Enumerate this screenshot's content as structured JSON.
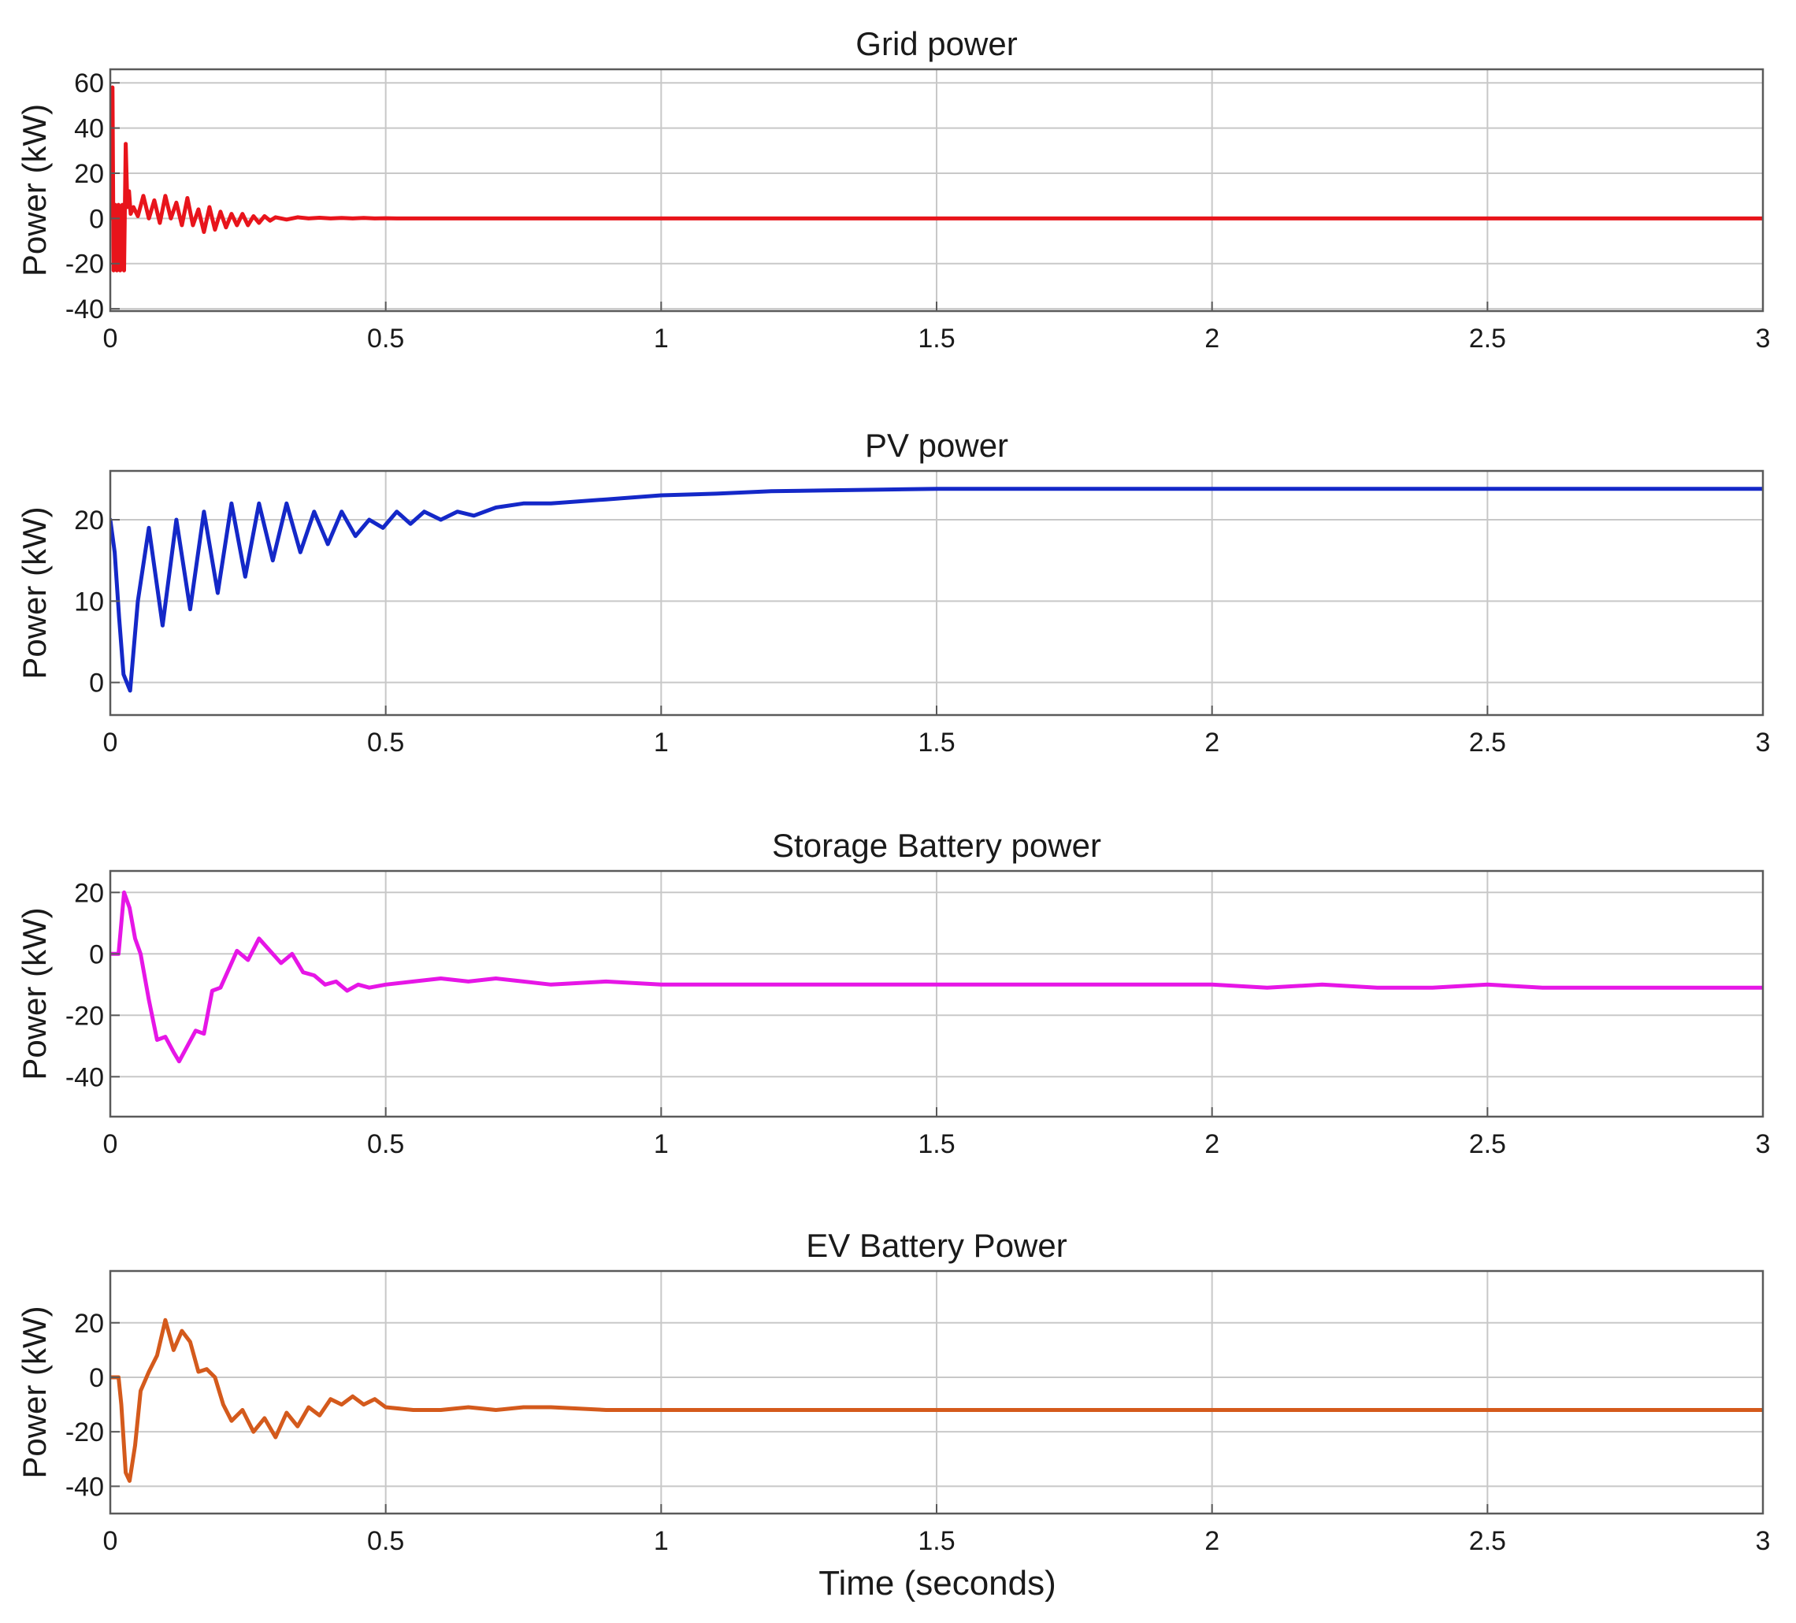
{
  "figure": {
    "xlabel": "Time (seconds)"
  },
  "chart_data": [
    {
      "type": "line",
      "title": "Grid power",
      "ylabel": "Power (kW)",
      "xlabel": "",
      "xlim": [
        0,
        3
      ],
      "ylim": [
        -41,
        66
      ],
      "xticks": [
        0,
        0.5,
        1,
        1.5,
        2,
        2.5,
        3
      ],
      "xtick_labels": [
        "0",
        "0.5",
        "1",
        "1.5",
        "2",
        "2.5",
        "3"
      ],
      "yticks": [
        -40,
        -20,
        0,
        20,
        40,
        60
      ],
      "ytick_labels": [
        "-40",
        "-20",
        "0",
        "20",
        "40",
        "60"
      ],
      "grid": true,
      "series": [
        {
          "color": "#e8141b",
          "x": [
            0,
            0.004,
            0.006,
            0.009,
            0.012,
            0.015,
            0.018,
            0.022,
            0.025,
            0.028,
            0.031,
            0.034,
            0.037,
            0.042,
            0.05,
            0.06,
            0.07,
            0.08,
            0.09,
            0.1,
            0.11,
            0.12,
            0.13,
            0.14,
            0.15,
            0.16,
            0.17,
            0.18,
            0.19,
            0.2,
            0.21,
            0.22,
            0.23,
            0.24,
            0.25,
            0.26,
            0.27,
            0.28,
            0.29,
            0.3,
            0.32,
            0.34,
            0.36,
            0.38,
            0.4,
            0.42,
            0.44,
            0.46,
            0.48,
            0.5,
            0.52,
            0.54,
            0.56,
            0.58,
            0.6,
            0.63,
            0.66,
            0.7,
            0.75,
            0.8,
            0.9,
            1.0,
            1.2,
            1.4,
            1.6,
            1.8,
            2.0,
            2.2,
            2.4,
            2.6,
            2.8,
            3.0
          ],
          "y": [
            0,
            58,
            -23,
            6,
            -23,
            6,
            -23,
            6,
            -23,
            33,
            5,
            12,
            2,
            5,
            1,
            10,
            0,
            8,
            -2,
            10,
            0,
            7,
            -3,
            9,
            -3,
            4,
            -6,
            5,
            -5,
            3,
            -4,
            2,
            -3,
            2,
            -3,
            1,
            -2,
            1,
            -1,
            0.5,
            -0.5,
            0.5,
            0,
            0.3,
            0,
            0.2,
            0,
            0.2,
            0,
            0.1,
            0,
            0,
            0,
            0,
            0,
            0,
            0,
            0,
            0,
            0,
            0,
            0,
            0,
            0,
            0,
            0,
            0,
            0,
            0,
            0,
            0,
            0
          ]
        }
      ]
    },
    {
      "type": "line",
      "title": "PV power",
      "ylabel": "Power (kW)",
      "xlabel": "",
      "xlim": [
        0,
        3
      ],
      "ylim": [
        -4,
        26
      ],
      "xticks": [
        0,
        0.5,
        1,
        1.5,
        2,
        2.5,
        3
      ],
      "xtick_labels": [
        "0",
        "0.5",
        "1",
        "1.5",
        "2",
        "2.5",
        "3"
      ],
      "yticks": [
        0,
        10,
        20
      ],
      "ytick_labels": [
        "0",
        "10",
        "20"
      ],
      "grid": true,
      "series": [
        {
          "color": "#1428c8",
          "x": [
            0,
            0.008,
            0.016,
            0.024,
            0.036,
            0.05,
            0.07,
            0.095,
            0.12,
            0.145,
            0.17,
            0.195,
            0.22,
            0.245,
            0.27,
            0.295,
            0.32,
            0.345,
            0.37,
            0.395,
            0.42,
            0.445,
            0.47,
            0.495,
            0.52,
            0.545,
            0.57,
            0.6,
            0.63,
            0.66,
            0.7,
            0.75,
            0.8,
            0.9,
            1.0,
            1.1,
            1.2,
            1.3,
            1.4,
            1.5,
            1.7,
            2.0,
            2.3,
            2.6,
            2.9,
            3.0
          ],
          "y": [
            20,
            16,
            8,
            1,
            -1,
            10,
            19,
            7,
            20,
            9,
            21,
            11,
            22,
            13,
            22,
            15,
            22,
            16,
            21,
            17,
            21,
            18,
            20,
            19,
            21,
            19.5,
            21,
            20,
            21,
            20.5,
            21.5,
            22,
            22,
            22.5,
            23,
            23.2,
            23.5,
            23.6,
            23.7,
            23.8,
            23.8,
            23.8,
            23.8,
            23.8,
            23.8,
            23.8
          ]
        }
      ]
    },
    {
      "type": "line",
      "title": "Storage Battery power",
      "ylabel": "Power (kW)",
      "xlabel": "",
      "xlim": [
        0,
        3
      ],
      "ylim": [
        -53,
        27
      ],
      "xticks": [
        0,
        0.5,
        1,
        1.5,
        2,
        2.5,
        3
      ],
      "xtick_labels": [
        "0",
        "0.5",
        "1",
        "1.5",
        "2",
        "2.5",
        "3"
      ],
      "yticks": [
        -40,
        -20,
        0,
        20
      ],
      "ytick_labels": [
        "-40",
        "-20",
        "0",
        "20"
      ],
      "grid": true,
      "series": [
        {
          "color": "#e616e6",
          "x": [
            0,
            0.015,
            0.025,
            0.035,
            0.045,
            0.055,
            0.07,
            0.085,
            0.1,
            0.115,
            0.125,
            0.14,
            0.155,
            0.17,
            0.185,
            0.2,
            0.215,
            0.23,
            0.25,
            0.27,
            0.29,
            0.31,
            0.33,
            0.35,
            0.37,
            0.39,
            0.41,
            0.43,
            0.45,
            0.47,
            0.5,
            0.55,
            0.6,
            0.65,
            0.7,
            0.75,
            0.8,
            0.9,
            1.0,
            1.1,
            1.2,
            1.3,
            1.4,
            1.5,
            1.6,
            1.7,
            1.8,
            1.9,
            2.0,
            2.1,
            2.2,
            2.3,
            2.4,
            2.5,
            2.6,
            2.7,
            2.8,
            2.9,
            3.0
          ],
          "y": [
            0,
            0,
            20,
            15,
            5,
            0,
            -15,
            -28,
            -27,
            -32,
            -35,
            -30,
            -25,
            -26,
            -12,
            -11,
            -5,
            1,
            -2,
            5,
            1,
            -3,
            0,
            -6,
            -7,
            -10,
            -9,
            -12,
            -10,
            -11,
            -10,
            -9,
            -8,
            -9,
            -8,
            -9,
            -10,
            -9,
            -10,
            -10,
            -10,
            -10,
            -10,
            -10,
            -10,
            -10,
            -10,
            -10,
            -10,
            -11,
            -10,
            -11,
            -11,
            -10,
            -11,
            -11,
            -11,
            -11,
            -11
          ]
        }
      ]
    },
    {
      "type": "line",
      "title": "EV Battery Power",
      "ylabel": "Power (kW)",
      "xlabel": "Time (seconds)",
      "xlim": [
        0,
        3
      ],
      "ylim": [
        -50,
        39
      ],
      "xticks": [
        0,
        0.5,
        1,
        1.5,
        2,
        2.5,
        3
      ],
      "xtick_labels": [
        "0",
        "0.5",
        "1",
        "1.5",
        "2",
        "2.5",
        "3"
      ],
      "yticks": [
        -40,
        -20,
        0,
        20
      ],
      "ytick_labels": [
        "-40",
        "-20",
        "0",
        "20"
      ],
      "grid": true,
      "series": [
        {
          "color": "#d45a1c",
          "x": [
            0,
            0.015,
            0.02,
            0.028,
            0.035,
            0.045,
            0.055,
            0.07,
            0.085,
            0.1,
            0.115,
            0.13,
            0.145,
            0.16,
            0.175,
            0.19,
            0.205,
            0.22,
            0.24,
            0.26,
            0.28,
            0.3,
            0.32,
            0.34,
            0.36,
            0.38,
            0.4,
            0.42,
            0.44,
            0.46,
            0.48,
            0.5,
            0.55,
            0.6,
            0.65,
            0.7,
            0.75,
            0.8,
            0.9,
            1.0,
            1.1,
            1.2,
            1.3,
            1.4,
            1.5,
            1.6,
            1.7,
            1.8,
            1.9,
            2.0,
            2.1,
            2.2,
            2.3,
            2.4,
            2.5,
            2.6,
            2.7,
            2.8,
            2.9,
            3.0
          ],
          "y": [
            0,
            0,
            -10,
            -35,
            -38,
            -25,
            -5,
            2,
            8,
            21,
            10,
            17,
            13,
            2,
            3,
            0,
            -10,
            -16,
            -12,
            -20,
            -15,
            -22,
            -13,
            -18,
            -11,
            -14,
            -8,
            -10,
            -7,
            -10,
            -8,
            -11,
            -12,
            -12,
            -11,
            -12,
            -11,
            -11,
            -12,
            -12,
            -12,
            -12,
            -12,
            -12,
            -12,
            -12,
            -12,
            -12,
            -12,
            -12,
            -12,
            -12,
            -12,
            -12,
            -12,
            -12,
            -12,
            -12,
            -12,
            -12
          ]
        }
      ]
    }
  ]
}
